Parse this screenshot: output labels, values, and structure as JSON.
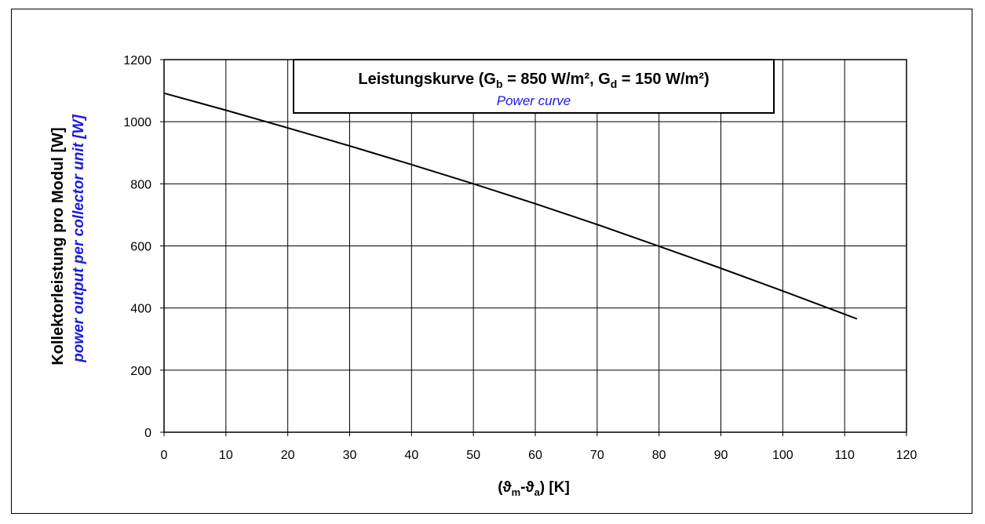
{
  "chart_data": {
    "type": "line",
    "title": {
      "main_prefix": "Leistungskurve (G",
      "main_sub1": "b",
      "main_mid": " = 850 W/m², G",
      "main_sub2": "d",
      "main_suffix": " = 150 W/m²)",
      "subtitle": "Power curve"
    },
    "xlabel": {
      "open": "(ϑ",
      "sub_m": "m",
      "mid": "-ϑ",
      "sub_a": "a",
      "close": ") [K]"
    },
    "ylabel": {
      "line1": "Kollektorleistung pro Modul  [W]",
      "line2": "power output per collector unit [W]"
    },
    "xlim": [
      0,
      120
    ],
    "ylim": [
      0,
      1200
    ],
    "x_ticks": [
      0,
      10,
      20,
      30,
      40,
      50,
      60,
      70,
      80,
      90,
      100,
      110,
      120
    ],
    "y_ticks": [
      0,
      200,
      400,
      600,
      800,
      1000,
      1200
    ],
    "grid": true,
    "series": [
      {
        "x": [
          0,
          10,
          20,
          30,
          40,
          50,
          60,
          70,
          80,
          90,
          100,
          110,
          112
        ],
        "y": [
          1092,
          1037,
          980,
          922,
          862,
          800,
          736,
          669,
          599,
          528,
          455,
          380,
          365
        ]
      }
    ],
    "colors": {
      "line": "#000000",
      "grid": "#000000",
      "english_text": "#1a1adc"
    }
  }
}
